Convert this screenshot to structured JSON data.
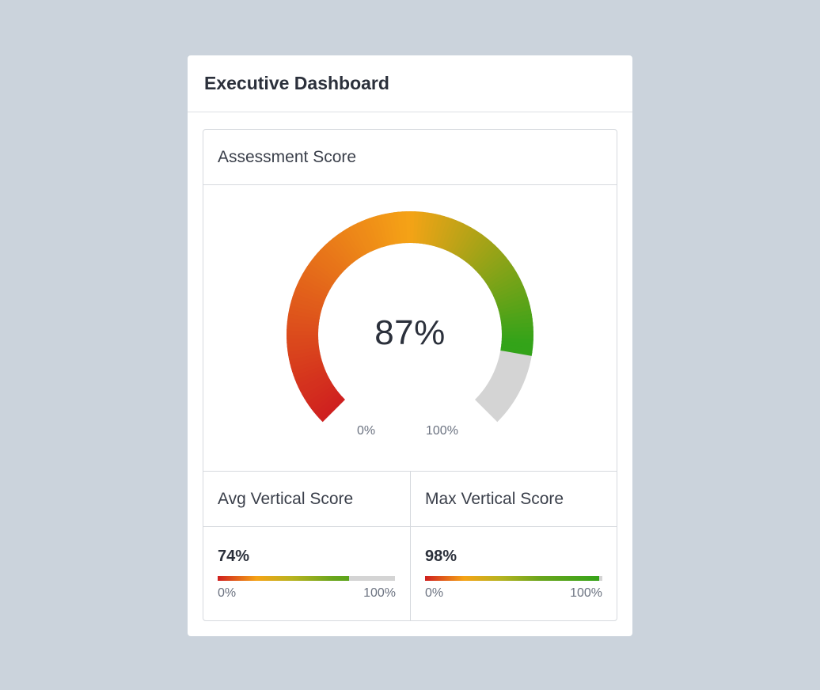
{
  "dashboard": {
    "title": "Executive Dashboard"
  },
  "assessment": {
    "label": "Assessment Score",
    "value": 87,
    "value_text": "87%",
    "min_label": "0%",
    "max_label": "100%"
  },
  "avg_vertical": {
    "label": "Avg Vertical Score",
    "value": 74,
    "value_text": "74%",
    "min_label": "0%",
    "max_label": "100%"
  },
  "max_vertical": {
    "label": "Max Vertical Score",
    "value": 98,
    "value_text": "98%",
    "min_label": "0%",
    "max_label": "100%"
  },
  "colors": {
    "page_background": "#cbd3dc",
    "gauge_low": "#cf1f1f",
    "gauge_mid": "#f5a316",
    "gauge_high": "#33a319",
    "track": "#d4d4d4"
  }
}
